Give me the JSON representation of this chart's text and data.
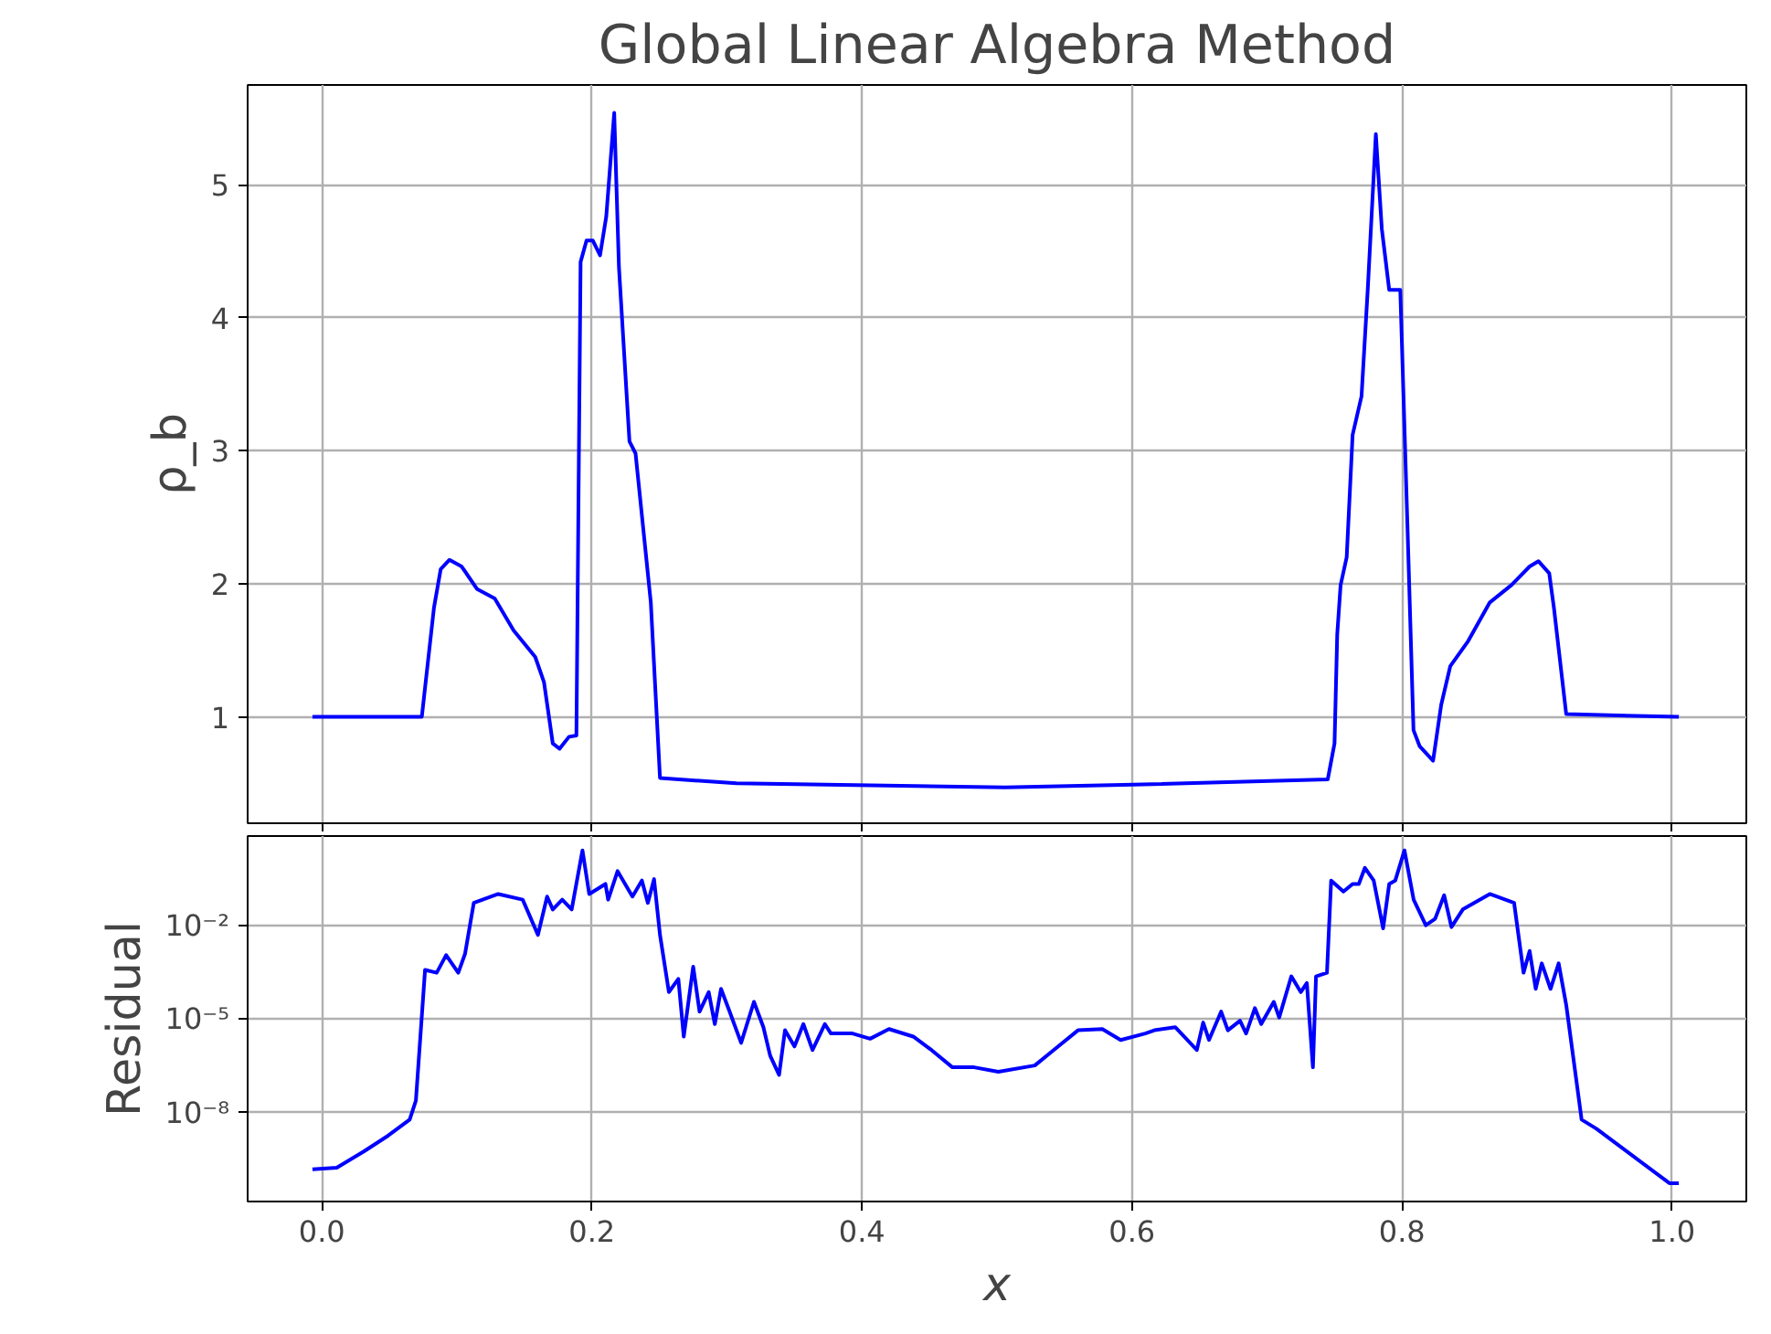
{
  "chart_data": [
    {
      "type": "line",
      "title": "Global Linear Algebra Method",
      "ylabel": "ρ_b",
      "grid": true,
      "tick_labels": "y",
      "marker": "none",
      "line_style": "solid",
      "xlim": [
        -0.055,
        1.055
      ],
      "xticks": [
        {
          "value": 0,
          "label": null
        },
        {
          "value": 0.2,
          "label": null
        },
        {
          "value": 0.4,
          "label": null
        },
        {
          "value": 0.6,
          "label": null
        },
        {
          "value": 0.8,
          "label": null
        },
        {
          "value": 1.0,
          "label": null
        }
      ],
      "ylim": [
        0.2,
        5.75
      ],
      "yticks": [
        1,
        2,
        3,
        4,
        5
      ],
      "x": [
        -0.007,
        0.074,
        0.083,
        0.088,
        0.0945,
        0.1035,
        0.115,
        0.128,
        0.142,
        0.158,
        0.1645,
        0.171,
        0.176,
        0.183,
        0.1885,
        0.1916,
        0.196,
        0.2007,
        0.206,
        0.2106,
        0.2165,
        0.22,
        0.2278,
        0.2323,
        0.2436,
        0.2504,
        0.307,
        0.506,
        0.6007,
        0.745,
        0.75,
        0.752,
        0.7545,
        0.759,
        0.7634,
        0.77,
        0.7747,
        0.7806,
        0.785,
        0.7905,
        0.7987,
        0.804,
        0.8085,
        0.813,
        0.823,
        0.829,
        0.8357,
        0.849,
        0.865,
        0.881,
        0.8945,
        0.901,
        0.909,
        0.9125,
        0.9216,
        1.005
      ],
      "series": [
        {
          "color": "#0000ff",
          "values": [
            1.0,
            1.0,
            1.82,
            2.11,
            2.18,
            2.13,
            1.96,
            1.89,
            1.65,
            1.45,
            1.26,
            0.8,
            0.76,
            0.85,
            0.86,
            4.42,
            4.58,
            4.58,
            4.47,
            4.76,
            5.54,
            4.38,
            3.07,
            2.98,
            1.86,
            0.54,
            0.5,
            0.47,
            0.49,
            0.53,
            0.8,
            1.62,
            1.99,
            2.2,
            3.12,
            3.41,
            4.23,
            5.38,
            4.67,
            4.21,
            4.21,
            2.44,
            0.9,
            0.78,
            0.67,
            1.09,
            1.38,
            1.57,
            1.86,
            1.99,
            2.13,
            2.17,
            2.08,
            1.82,
            1.02,
            1.0
          ]
        }
      ]
    },
    {
      "type": "line",
      "xlabel": "x",
      "ylabel": "Residual",
      "grid": true,
      "log": "y",
      "marker": "none",
      "line_style": "solid",
      "xlim": [
        -0.055,
        1.055
      ],
      "xticks": [
        {
          "value": 0,
          "label": "0.0"
        },
        {
          "value": 0.2,
          "label": "0.2"
        },
        {
          "value": 0.4,
          "label": "0.4"
        },
        {
          "value": 0.6,
          "label": "0.6"
        },
        {
          "value": 0.8,
          "label": "0.8"
        },
        {
          "value": 1.0,
          "label": "1.0"
        }
      ],
      "ylim": [
        1.4e-11,
        7.2
      ],
      "yticks": [
        {
          "value": 1e-08,
          "label": "10⁻⁸"
        },
        {
          "value": 1e-05,
          "label": "10⁻⁵"
        },
        {
          "value": 0.01,
          "label": "10⁻²"
        }
      ],
      "x": [
        -0.007,
        0.011,
        0.031,
        0.049,
        0.065,
        0.0696,
        0.0764,
        0.085,
        0.092,
        0.101,
        0.106,
        0.1125,
        0.1306,
        0.1487,
        0.16,
        0.1668,
        0.171,
        0.178,
        0.185,
        0.193,
        0.198,
        0.21,
        0.212,
        0.219,
        0.23,
        0.237,
        0.2414,
        0.246,
        0.2504,
        0.257,
        0.264,
        0.268,
        0.275,
        0.2797,
        0.2865,
        0.291,
        0.2956,
        0.302,
        0.3105,
        0.32,
        0.327,
        0.332,
        0.3386,
        0.343,
        0.35,
        0.3566,
        0.3634,
        0.3725,
        0.377,
        0.393,
        0.406,
        0.42,
        0.438,
        0.4515,
        0.467,
        0.483,
        0.501,
        0.528,
        0.542,
        0.56,
        0.578,
        0.5916,
        0.6098,
        0.6166,
        0.632,
        0.648,
        0.6527,
        0.657,
        0.666,
        0.671,
        0.68,
        0.6845,
        0.691,
        0.6957,
        0.705,
        0.709,
        0.718,
        0.725,
        0.7295,
        0.734,
        0.7363,
        0.7444,
        0.7475,
        0.7566,
        0.7634,
        0.768,
        0.7725,
        0.779,
        0.786,
        0.7905,
        0.795,
        0.8018,
        0.8086,
        0.8176,
        0.8245,
        0.8312,
        0.8366,
        0.845,
        0.865,
        0.883,
        0.89,
        0.8945,
        0.899,
        0.9035,
        0.91,
        0.916,
        0.9216,
        0.933,
        0.944,
        0.998,
        1.005
      ],
      "series": [
        {
          "color": "#0000ff",
          "values": [
            1.5e-10,
            1.7e-10,
            5.6e-10,
            1.8e-09,
            5.9e-09,
            2.4e-08,
            0.00037,
            0.0003,
            0.0011,
            0.0003,
            0.0012,
            0.052,
            0.1,
            0.066,
            0.0049,
            0.083,
            0.032,
            0.066,
            0.032,
            2.5,
            0.1,
            0.21,
            0.066,
            0.54,
            0.083,
            0.27,
            0.052,
            0.3,
            0.0049,
            7.2e-05,
            0.00019,
            2.7e-06,
            0.00047,
            1.7e-05,
            7.2e-05,
            6.8e-06,
            9.1e-05,
            1.7e-05,
            1.7e-06,
            3.5e-05,
            5.4e-06,
            6.6e-07,
            1.6e-07,
            4.3e-06,
            1.3e-06,
            6.8e-06,
            1e-06,
            6.8e-06,
            3.4e-06,
            3.4e-06,
            2.3e-06,
            4.7e-06,
            2.7e-06,
            1e-06,
            2.8e-07,
            2.8e-07,
            2e-07,
            3.2e-07,
            1e-06,
            4.3e-06,
            4.7e-06,
            2.1e-06,
            3.4e-06,
            4.3e-06,
            5.4e-06,
            1e-06,
            7.6e-06,
            2.1e-06,
            1.7e-05,
            4.3e-06,
            8.7e-06,
            3.4e-06,
            2.2e-05,
            6.8e-06,
            3.5e-05,
            1.1e-05,
            0.00023,
            7.2e-05,
            0.00014,
            2.8e-07,
            0.00023,
            0.0003,
            0.27,
            0.12,
            0.21,
            0.21,
            0.69,
            0.27,
            0.0079,
            0.21,
            0.27,
            2.5,
            0.066,
            0.01,
            0.016,
            0.091,
            0.0087,
            0.032,
            0.1,
            0.052,
            0.0003,
            0.0015,
            9.1e-05,
            0.0006,
            9.1e-05,
            0.0006,
            2.8e-05,
            5.9e-09,
            3e-09,
            5.4e-11,
            5.4e-11
          ]
        }
      ]
    }
  ]
}
